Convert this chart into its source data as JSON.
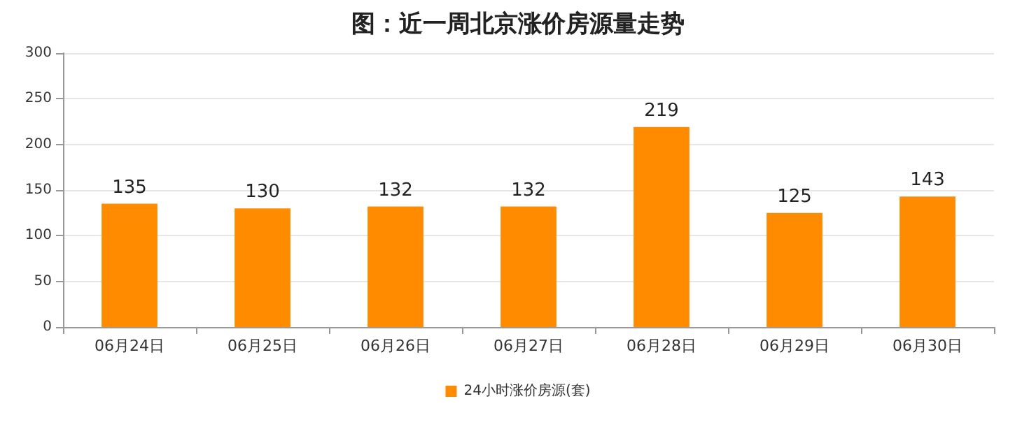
{
  "chart_data": {
    "type": "bar",
    "title": "图：近一周北京涨价房源量走势",
    "categories": [
      "06月24日",
      "06月25日",
      "06月26日",
      "06月27日",
      "06月28日",
      "06月29日",
      "06月30日"
    ],
    "series": [
      {
        "name": "24小时涨价房源(套)",
        "color": "#ff8c00",
        "values": [
          135,
          130,
          132,
          132,
          219,
          125,
          143
        ]
      }
    ],
    "ylim": [
      0,
      300
    ],
    "yticks": [
      0,
      50,
      100,
      150,
      200,
      250,
      300
    ],
    "grid": "y",
    "legend": "bottom",
    "data_labels": true
  }
}
